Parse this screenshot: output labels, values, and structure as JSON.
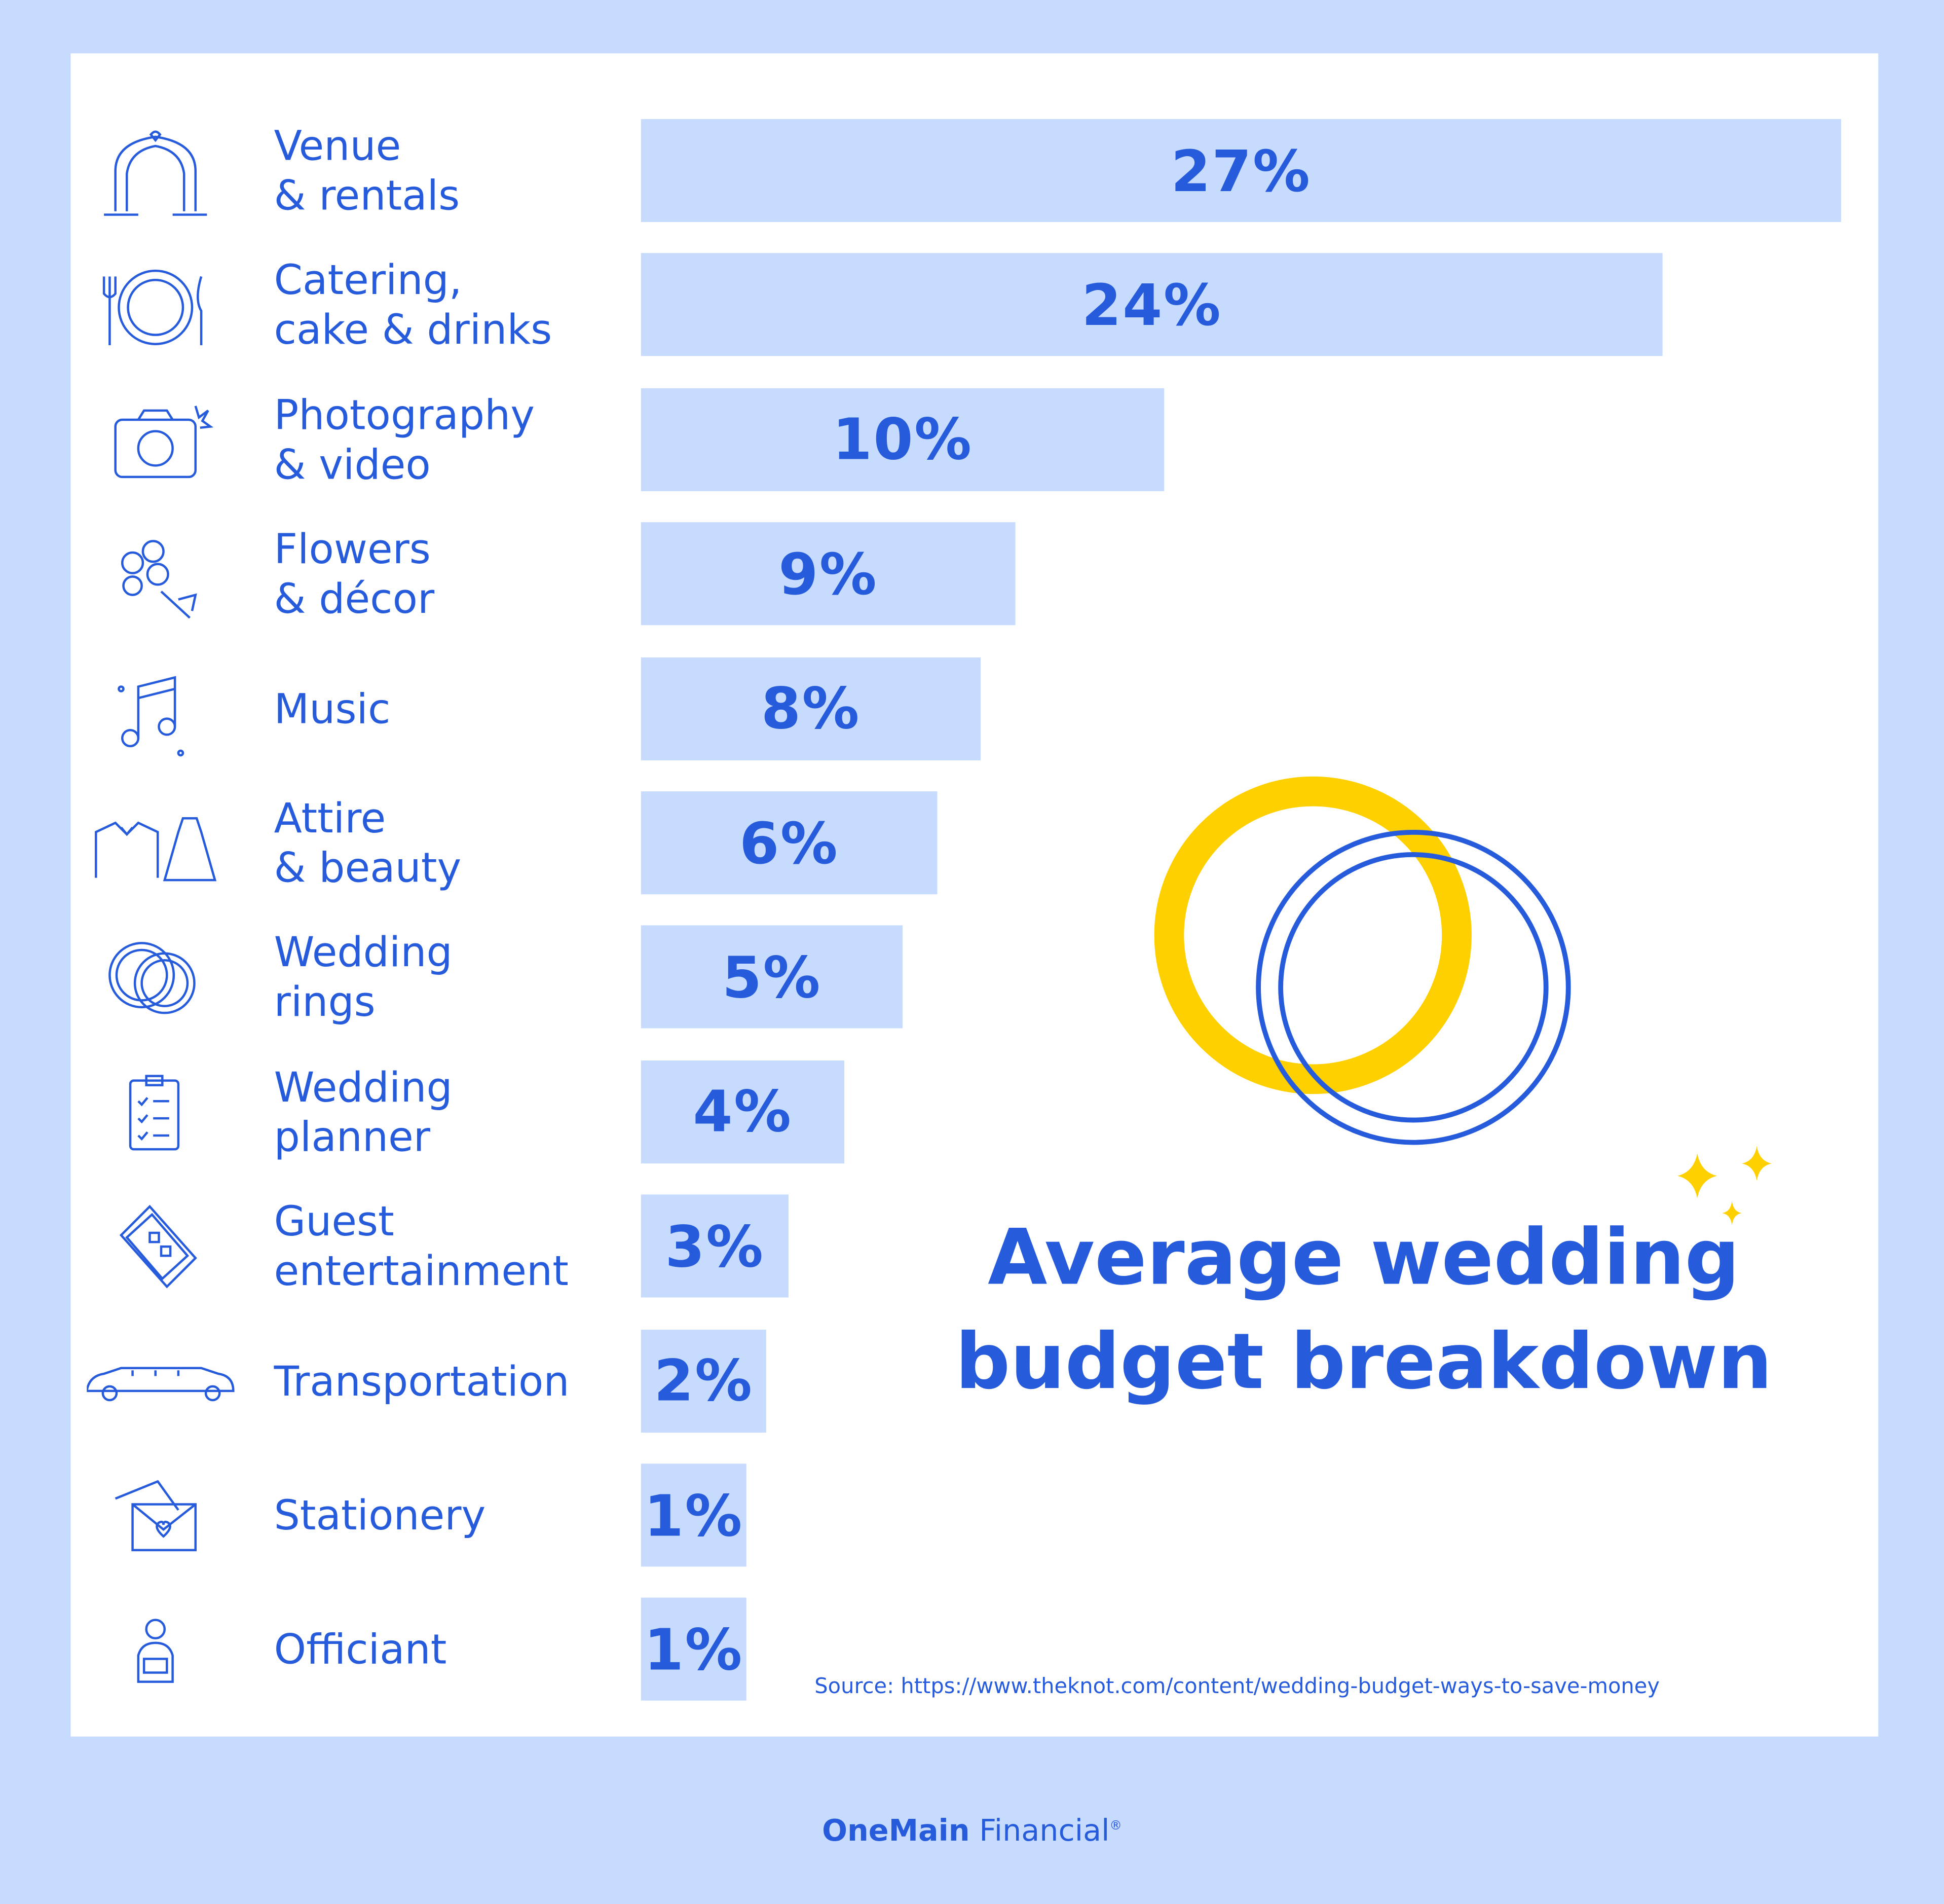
{
  "chart_data": {
    "type": "bar",
    "orientation": "horizontal",
    "title": "Average wedding budget breakdown",
    "categories": [
      "Venue\n& rentals",
      "Catering,\ncake & drinks",
      "Photography\n& video",
      "Flowers\n& décor",
      "Music",
      "Attire\n& beauty",
      "Wedding\nrings",
      "Wedding\nplanner",
      "Guest\nentertainment",
      "Transportation",
      "Stationery",
      "Officiant"
    ],
    "values": [
      27,
      24,
      10,
      9,
      8,
      6,
      5,
      4,
      3,
      2,
      1,
      1
    ],
    "value_labels": [
      "27%",
      "24%",
      "10%",
      "9%",
      "8%",
      "6%",
      "5%",
      "4%",
      "3%",
      "2%",
      "1%",
      "1%"
    ],
    "icons": [
      "arch-icon",
      "plate-cutlery-icon",
      "camera-icon",
      "bouquet-icon",
      "music-note-icon",
      "tux-dress-icon",
      "rings-icon",
      "clipboard-icon",
      "tickets-icon",
      "limo-icon",
      "envelope-icon",
      "officiant-icon"
    ],
    "colors": {
      "bar": "#c6dbfe",
      "text": "#265bdb",
      "ring_gold": "#ffd000",
      "background": "#c6dbfe",
      "panel": "#ffffff"
    }
  },
  "source": "Source: https://www.theknot.com/content/wedding-budget-ways-to-save-money",
  "logo": {
    "bold": "OneMain",
    "regular": "Financial",
    "mark": "®"
  }
}
